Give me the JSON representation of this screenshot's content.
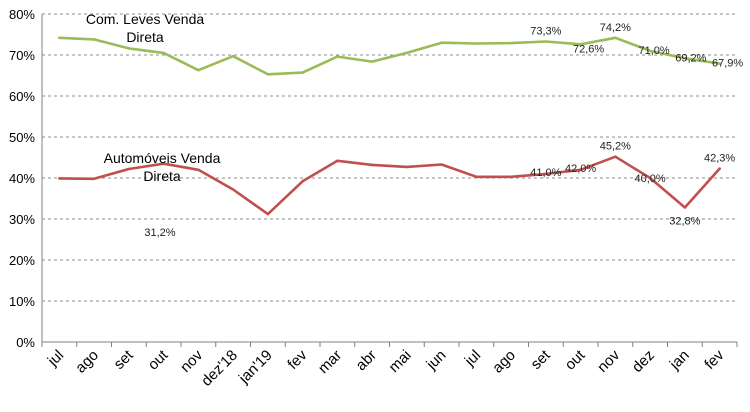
{
  "chart_data": {
    "type": "line",
    "categories": [
      "jul",
      "ago",
      "set",
      "out",
      "nov",
      "dez'18",
      "jan'19",
      "fev",
      "mar",
      "abr",
      "mai",
      "jun",
      "jul",
      "ago",
      "set",
      "out",
      "nov",
      "dez",
      "jan",
      "fev"
    ],
    "ylim": [
      0,
      80
    ],
    "yticks": [
      "0%",
      "10%",
      "20%",
      "30%",
      "40%",
      "50%",
      "60%",
      "70%",
      "80%"
    ],
    "grid": "horizontal-dashed",
    "series": [
      {
        "name": "Com. Leves Venda Direta",
        "color": "#9BBB59",
        "values": [
          74.2,
          73.8,
          71.6,
          70.5,
          66.3,
          69.7,
          65.3,
          65.7,
          69.6,
          68.4,
          70.5,
          73.0,
          72.8,
          72.9,
          73.3,
          72.6,
          74.2,
          71.0,
          69.2,
          67.9
        ],
        "labels": [
          "",
          "",
          "",
          "",
          "",
          "",
          "",
          "",
          "",
          "",
          "",
          "",
          "",
          "",
          "73,3%",
          "72,6%",
          "74,2%",
          "71,0%",
          "69,2%",
          "67,9%"
        ]
      },
      {
        "name": "Automóveis Venda Direta",
        "color": "#C0504D",
        "values": [
          39.9,
          39.8,
          42.2,
          43.5,
          42.0,
          37.2,
          31.2,
          39.2,
          44.2,
          43.2,
          42.7,
          43.3,
          40.3,
          40.3,
          41.0,
          42.0,
          45.2,
          40.0,
          32.8,
          42.3
        ],
        "labels": [
          "",
          "",
          "",
          "",
          "",
          "",
          "31,2%",
          "",
          "",
          "",
          "",
          "",
          "",
          "",
          "41,0%",
          "42,0%",
          "45,2%",
          "40,0%",
          "32,8%",
          "42,3%"
        ]
      }
    ]
  }
}
